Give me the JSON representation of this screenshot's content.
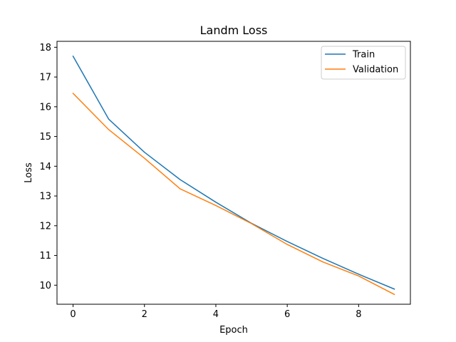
{
  "chart_data": {
    "type": "line",
    "title": "Landm Loss",
    "xlabel": "Epoch",
    "ylabel": "Loss",
    "xlim": [
      -0.45,
      9.45
    ],
    "ylim": [
      9.36,
      18.2
    ],
    "xticks": [
      0,
      2,
      4,
      6,
      8
    ],
    "yticks": [
      10,
      11,
      12,
      13,
      14,
      15,
      16,
      17,
      18
    ],
    "grid": false,
    "legend_position": "top-right",
    "x": [
      0,
      1,
      2,
      3,
      4,
      5,
      6,
      7,
      8,
      9
    ],
    "series": [
      {
        "name": "Train",
        "color": "#1f77b4",
        "values": [
          17.7,
          15.58,
          14.47,
          13.55,
          12.79,
          12.08,
          11.47,
          10.9,
          10.37,
          9.87
        ]
      },
      {
        "name": "Validation",
        "color": "#ff7f0e",
        "values": [
          16.45,
          15.23,
          14.27,
          13.24,
          12.68,
          12.07,
          11.37,
          10.78,
          10.31,
          9.69
        ]
      }
    ]
  }
}
